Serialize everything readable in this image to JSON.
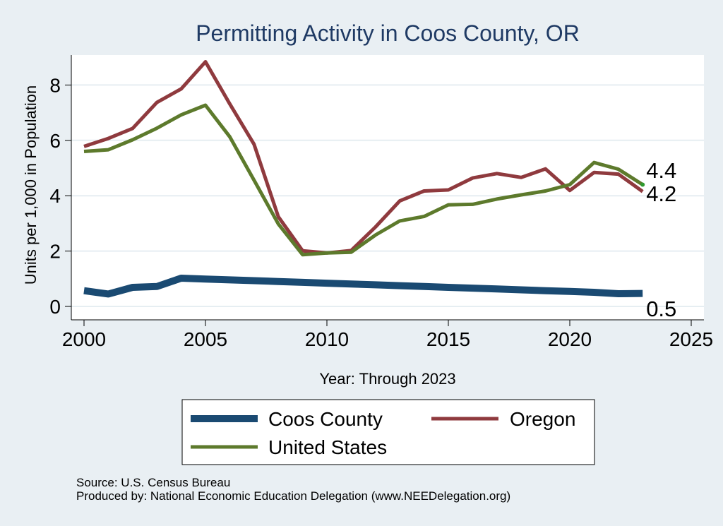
{
  "chart_data": {
    "type": "line",
    "title": "Permitting Activity in Coos County, OR",
    "xlabel": "Year: Through 2023",
    "ylabel": "Units per 1,000 in Population",
    "xlim": [
      2000,
      2025
    ],
    "ylim": [
      0,
      9
    ],
    "xticks": [
      2000,
      2005,
      2010,
      2015,
      2020,
      2025
    ],
    "xtick_labels": [
      "2000",
      "2005",
      "2010",
      "2015",
      "2020",
      "2025"
    ],
    "yticks": [
      0,
      2,
      4,
      6,
      8
    ],
    "ytick_labels": [
      "0",
      "2",
      "4",
      "6",
      "8"
    ],
    "grid": true,
    "legend_position": "bottom",
    "x": [
      2000,
      2001,
      2002,
      2003,
      2004,
      2005,
      2006,
      2007,
      2008,
      2009,
      2010,
      2011,
      2012,
      2013,
      2014,
      2015,
      2016,
      2017,
      2018,
      2019,
      2020,
      2021,
      2022,
      2023
    ],
    "series": [
      {
        "name": "Coos County",
        "color": "#1a4a72",
        "width": 10,
        "values": [
          0.57,
          0.45,
          0.69,
          0.72,
          1.02,
          0.99,
          0.96,
          0.93,
          0.9,
          0.87,
          0.84,
          0.81,
          0.78,
          0.75,
          0.72,
          0.69,
          0.66,
          0.63,
          0.6,
          0.57,
          0.54,
          0.51,
          0.46,
          0.47
        ],
        "end_label": "0.5"
      },
      {
        "name": "Oregon",
        "color": "#8f3a3e",
        "width": 5,
        "values": [
          5.78,
          6.07,
          6.43,
          7.37,
          7.86,
          8.84,
          7.32,
          5.86,
          3.24,
          2.01,
          1.93,
          2.02,
          2.87,
          3.81,
          4.17,
          4.21,
          4.64,
          4.8,
          4.66,
          4.97,
          4.19,
          4.84,
          4.78,
          4.15
        ],
        "end_label": "4.2"
      },
      {
        "name": "United States",
        "color": "#5d7a2c",
        "width": 5,
        "values": [
          5.6,
          5.66,
          6.02,
          6.44,
          6.92,
          7.27,
          6.13,
          4.56,
          2.98,
          1.87,
          1.93,
          1.96,
          2.58,
          3.09,
          3.25,
          3.67,
          3.69,
          3.88,
          4.03,
          4.17,
          4.4,
          5.2,
          4.96,
          4.4
        ],
        "end_label": "4.4"
      }
    ],
    "legend": [
      "Coos County",
      "Oregon",
      "United States"
    ],
    "notes": [
      "Source: U.S. Census Bureau",
      "Produced by: National Economic Education Delegation (www.NEEDelegation.org)"
    ]
  },
  "colors": {
    "background": "#e9eff3",
    "plot_background": "#ffffff",
    "grid": "#e6eef2",
    "title": "#1f3a64",
    "text": "#000000"
  }
}
